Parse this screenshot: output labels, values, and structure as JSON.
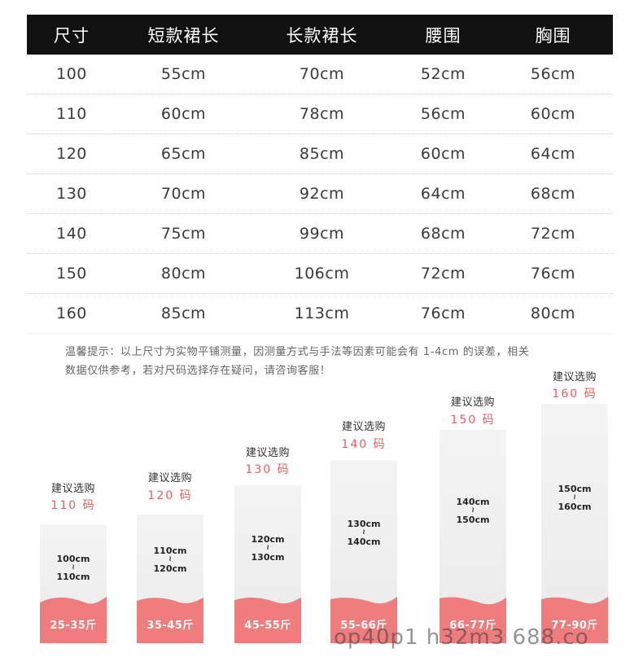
{
  "table": {
    "headers": [
      "尺寸",
      "短款裙长",
      "长款裙长",
      "腰围",
      "胸围"
    ],
    "rows": [
      [
        "100",
        "55cm",
        "70cm",
        "52cm",
        "56cm"
      ],
      [
        "110",
        "60cm",
        "78cm",
        "56cm",
        "60cm"
      ],
      [
        "120",
        "65cm",
        "85cm",
        "60cm",
        "64cm"
      ],
      [
        "130",
        "70cm",
        "92cm",
        "64cm",
        "68cm"
      ],
      [
        "140",
        "75cm",
        "99cm",
        "68cm",
        "72cm"
      ],
      [
        "150",
        "80cm",
        "106cm",
        "72cm",
        "76cm"
      ],
      [
        "160",
        "85cm",
        "113cm",
        "76cm",
        "80cm"
      ]
    ]
  },
  "note": {
    "line1": "温馨提示：以上尺寸为实物平铺测量，因测量方式与手法等因素可能会有 1-4cm 的误差，相关",
    "line2": "数据仅供参考，若对尺码选择存在疑问，请咨询客服！"
  },
  "recommendations": [
    {
      "label": "建议选购",
      "size": "110 码",
      "height_from": "100cm",
      "approx": "≀",
      "height_to": "110cm",
      "weight": "25-35斤"
    },
    {
      "label": "建议选购",
      "size": "120 码",
      "height_from": "110cm",
      "approx": "≀",
      "height_to": "120cm",
      "weight": "35-45斤"
    },
    {
      "label": "建议选购",
      "size": "130 码",
      "height_from": "120cm",
      "approx": "≀",
      "height_to": "130cm",
      "weight": "45-55斤"
    },
    {
      "label": "建议选购",
      "size": "140 码",
      "height_from": "130cm",
      "approx": "≀",
      "height_to": "140cm",
      "weight": "55-66斤"
    },
    {
      "label": "建议选购",
      "size": "150 码",
      "height_from": "140cm",
      "approx": "≀",
      "height_to": "150cm",
      "weight": "66-77斤"
    },
    {
      "label": "建议选购",
      "size": "160 码",
      "height_from": "150cm",
      "approx": "≀",
      "height_to": "160cm",
      "weight": "77-90斤"
    }
  ],
  "watermark": "op40p1      h32m3   688.co",
  "colors": {
    "header_bg": "#111111",
    "accent": "#e35f5f",
    "wave": "#ef7d7d",
    "bar": "#efefef"
  }
}
